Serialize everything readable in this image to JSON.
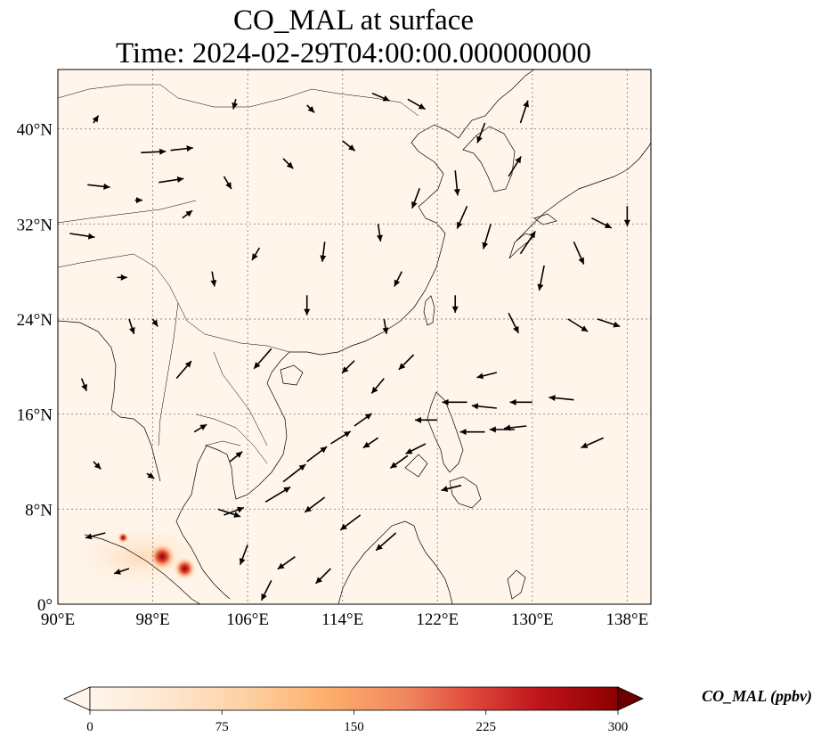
{
  "figure": {
    "title_line1": "CO_MAL at surface",
    "title_line2": "Time: 2024-02-29T04:00:00.000000000"
  },
  "map": {
    "lon_range": [
      90,
      140
    ],
    "lat_range": [
      0,
      45
    ],
    "lon_ticks": [
      {
        "value": 90,
        "label": "90°E"
      },
      {
        "value": 98,
        "label": "98°E"
      },
      {
        "value": 106,
        "label": "106°E"
      },
      {
        "value": 114,
        "label": "114°E"
      },
      {
        "value": 122,
        "label": "122°E"
      },
      {
        "value": 130,
        "label": "130°E"
      },
      {
        "value": 138,
        "label": "138°E"
      }
    ],
    "lat_ticks": [
      {
        "value": 0,
        "label": "0°"
      },
      {
        "value": 8,
        "label": "8°N"
      },
      {
        "value": 16,
        "label": "16°N"
      },
      {
        "value": 24,
        "label": "24°N"
      },
      {
        "value": 32,
        "label": "32°N"
      },
      {
        "value": 40,
        "label": "40°N"
      }
    ],
    "gridlines": true,
    "background_color": "#fff5ea",
    "coastline_color": "#000000",
    "hotspots": [
      {
        "lon": 98.8,
        "lat": 4.0,
        "level": 280
      },
      {
        "lon": 100.7,
        "lat": 3.0,
        "level": 220
      },
      {
        "lon": 95.5,
        "lat": 5.6,
        "level": 60
      }
    ],
    "wind_vectors": [
      {
        "lon": 91.0,
        "lat": 31.2,
        "u": 1.0,
        "v": -0.15
      },
      {
        "lon": 92.5,
        "lat": 35.3,
        "u": 0.9,
        "v": -0.1
      },
      {
        "lon": 97.0,
        "lat": 38.0,
        "u": 1.0,
        "v": 0.05
      },
      {
        "lon": 99.5,
        "lat": 38.2,
        "u": 0.9,
        "v": 0.1
      },
      {
        "lon": 98.5,
        "lat": 35.5,
        "u": 1.0,
        "v": 0.15
      },
      {
        "lon": 103.5,
        "lat": 8.0,
        "u": 0.9,
        "v": -0.3
      },
      {
        "lon": 107.5,
        "lat": 8.6,
        "u": 1.0,
        "v": 0.6
      },
      {
        "lon": 109.0,
        "lat": 10.3,
        "u": 0.9,
        "v": 0.7
      },
      {
        "lon": 111.0,
        "lat": 12.0,
        "u": 0.8,
        "v": 0.6
      },
      {
        "lon": 113.0,
        "lat": 13.5,
        "u": 0.8,
        "v": 0.5
      },
      {
        "lon": 115.0,
        "lat": 15.0,
        "u": 0.7,
        "v": 0.5
      },
      {
        "lon": 117.0,
        "lat": 14.0,
        "u": -0.6,
        "v": -0.4
      },
      {
        "lon": 119.5,
        "lat": 12.5,
        "u": -0.7,
        "v": -0.5
      },
      {
        "lon": 121.0,
        "lat": 13.5,
        "u": -0.8,
        "v": -0.4
      },
      {
        "lon": 112.5,
        "lat": 9.0,
        "u": -0.8,
        "v": -0.6
      },
      {
        "lon": 115.5,
        "lat": 7.5,
        "u": -0.8,
        "v": -0.6
      },
      {
        "lon": 118.5,
        "lat": 6.0,
        "u": -0.8,
        "v": -0.7
      },
      {
        "lon": 110.0,
        "lat": 4.0,
        "u": -0.7,
        "v": -0.5
      },
      {
        "lon": 113.0,
        "lat": 3.0,
        "u": -0.6,
        "v": -0.6
      },
      {
        "lon": 124.5,
        "lat": 17.0,
        "u": -1.0,
        "v": 0.0
      },
      {
        "lon": 127.0,
        "lat": 16.5,
        "u": -1.0,
        "v": 0.1
      },
      {
        "lon": 130.0,
        "lat": 17.0,
        "u": -0.9,
        "v": 0.0
      },
      {
        "lon": 133.5,
        "lat": 17.2,
        "u": -1.0,
        "v": 0.1
      },
      {
        "lon": 127.0,
        "lat": 19.5,
        "u": -0.8,
        "v": -0.2
      },
      {
        "lon": 129.5,
        "lat": 15.0,
        "u": -0.9,
        "v": -0.1
      },
      {
        "lon": 122.0,
        "lat": 15.5,
        "u": -0.9,
        "v": 0.0
      },
      {
        "lon": 136.0,
        "lat": 14.0,
        "u": -0.9,
        "v": -0.4
      },
      {
        "lon": 124.0,
        "lat": 10.0,
        "u": -0.8,
        "v": -0.2
      },
      {
        "lon": 126.0,
        "lat": 14.5,
        "u": -1.0,
        "v": 0.0
      },
      {
        "lon": 128.5,
        "lat": 14.7,
        "u": -1.0,
        "v": 0.0
      },
      {
        "lon": 104.0,
        "lat": 7.5,
        "u": 0.8,
        "v": 0.3
      },
      {
        "lon": 106.0,
        "lat": 5.0,
        "u": -0.3,
        "v": -0.8
      },
      {
        "lon": 108.0,
        "lat": 2.0,
        "u": -0.4,
        "v": -0.8
      },
      {
        "lon": 94.0,
        "lat": 6.0,
        "u": -0.8,
        "v": -0.2
      },
      {
        "lon": 96.0,
        "lat": 3.0,
        "u": -0.6,
        "v": -0.2
      },
      {
        "lon": 117.5,
        "lat": 19.0,
        "u": -0.5,
        "v": -0.6
      },
      {
        "lon": 115.0,
        "lat": 20.5,
        "u": -0.5,
        "v": -0.5
      },
      {
        "lon": 120.0,
        "lat": 21.0,
        "u": -0.6,
        "v": -0.6
      },
      {
        "lon": 108.0,
        "lat": 21.5,
        "u": -0.7,
        "v": -0.8
      },
      {
        "lon": 111.0,
        "lat": 26.0,
        "u": 0.0,
        "v": -0.8
      },
      {
        "lon": 112.5,
        "lat": 30.5,
        "u": -0.1,
        "v": -0.8
      },
      {
        "lon": 117.0,
        "lat": 32.0,
        "u": 0.1,
        "v": -0.7
      },
      {
        "lon": 119.0,
        "lat": 28.0,
        "u": -0.3,
        "v": -0.6
      },
      {
        "lon": 120.5,
        "lat": 35.0,
        "u": -0.3,
        "v": -0.8
      },
      {
        "lon": 123.5,
        "lat": 36.5,
        "u": 0.1,
        "v": -1.0
      },
      {
        "lon": 124.5,
        "lat": 33.5,
        "u": -0.4,
        "v": -0.9
      },
      {
        "lon": 126.5,
        "lat": 32.0,
        "u": -0.3,
        "v": -1.0
      },
      {
        "lon": 128.0,
        "lat": 36.0,
        "u": 0.5,
        "v": 0.8
      },
      {
        "lon": 129.0,
        "lat": 29.5,
        "u": 0.6,
        "v": 0.9
      },
      {
        "lon": 131.0,
        "lat": 28.5,
        "u": -0.2,
        "v": -1.0
      },
      {
        "lon": 133.5,
        "lat": 30.5,
        "u": 0.4,
        "v": -0.9
      },
      {
        "lon": 135.0,
        "lat": 32.5,
        "u": 0.8,
        "v": -0.4
      },
      {
        "lon": 129.0,
        "lat": 40.5,
        "u": 0.3,
        "v": 0.9
      },
      {
        "lon": 126.0,
        "lat": 40.5,
        "u": -0.3,
        "v": -0.8
      },
      {
        "lon": 128.0,
        "lat": 24.5,
        "u": 0.4,
        "v": -0.8
      },
      {
        "lon": 133.0,
        "lat": 24.0,
        "u": 0.8,
        "v": -0.5
      },
      {
        "lon": 135.5,
        "lat": 24.0,
        "u": 0.9,
        "v": -0.3
      },
      {
        "lon": 100.0,
        "lat": 19.0,
        "u": 0.6,
        "v": 0.7
      },
      {
        "lon": 96.0,
        "lat": 24.0,
        "u": 0.2,
        "v": -0.6
      },
      {
        "lon": 103.0,
        "lat": 28.0,
        "u": 0.1,
        "v": -0.6
      },
      {
        "lon": 107.0,
        "lat": 30.0,
        "u": -0.3,
        "v": -0.5
      },
      {
        "lon": 104.0,
        "lat": 36.0,
        "u": 0.3,
        "v": -0.5
      },
      {
        "lon": 109.0,
        "lat": 37.5,
        "u": 0.4,
        "v": -0.4
      },
      {
        "lon": 114.0,
        "lat": 39.0,
        "u": 0.5,
        "v": -0.4
      },
      {
        "lon": 116.5,
        "lat": 43.0,
        "u": 0.7,
        "v": -0.3
      },
      {
        "lon": 119.5,
        "lat": 42.5,
        "u": 0.7,
        "v": -0.4
      },
      {
        "lon": 111.0,
        "lat": 42.0,
        "u": 0.3,
        "v": -0.3
      },
      {
        "lon": 105.0,
        "lat": 42.5,
        "u": -0.1,
        "v": -0.4
      },
      {
        "lon": 93.0,
        "lat": 40.5,
        "u": 0.2,
        "v": 0.3
      },
      {
        "lon": 95.0,
        "lat": 27.5,
        "u": 0.4,
        "v": 0.0
      },
      {
        "lon": 98.0,
        "lat": 24.0,
        "u": 0.2,
        "v": -0.3
      },
      {
        "lon": 101.5,
        "lat": 14.5,
        "u": 0.5,
        "v": 0.3
      },
      {
        "lon": 104.5,
        "lat": 12.0,
        "u": 0.5,
        "v": 0.4
      },
      {
        "lon": 97.5,
        "lat": 11.0,
        "u": 0.3,
        "v": -0.2
      },
      {
        "lon": 93.0,
        "lat": 12.0,
        "u": 0.3,
        "v": -0.3
      },
      {
        "lon": 92.0,
        "lat": 19.0,
        "u": 0.2,
        "v": -0.5
      },
      {
        "lon": 96.5,
        "lat": 34.0,
        "u": 0.3,
        "v": 0.0
      },
      {
        "lon": 100.5,
        "lat": 32.5,
        "u": 0.4,
        "v": 0.3
      },
      {
        "lon": 117.5,
        "lat": 24.0,
        "u": 0.1,
        "v": -0.6
      },
      {
        "lon": 123.5,
        "lat": 26.0,
        "u": 0.0,
        "v": -0.7
      },
      {
        "lon": 138.0,
        "lat": 33.5,
        "u": 0.0,
        "v": -0.8
      }
    ]
  },
  "colorbar": {
    "label": "CO_MAL (ppbv)",
    "min": 0,
    "max": 300,
    "extend": "both",
    "ticks": [
      {
        "value": 0,
        "label": "0"
      },
      {
        "value": 75,
        "label": "75"
      },
      {
        "value": 150,
        "label": "150"
      },
      {
        "value": 225,
        "label": "225"
      },
      {
        "value": 300,
        "label": "300"
      }
    ],
    "colors": [
      "#fff5eb",
      "#fee6ce",
      "#fdd0a2",
      "#fdae6b",
      "#f0865f",
      "#e04a3c",
      "#c0141c",
      "#8b0000",
      "#6b0000"
    ]
  }
}
